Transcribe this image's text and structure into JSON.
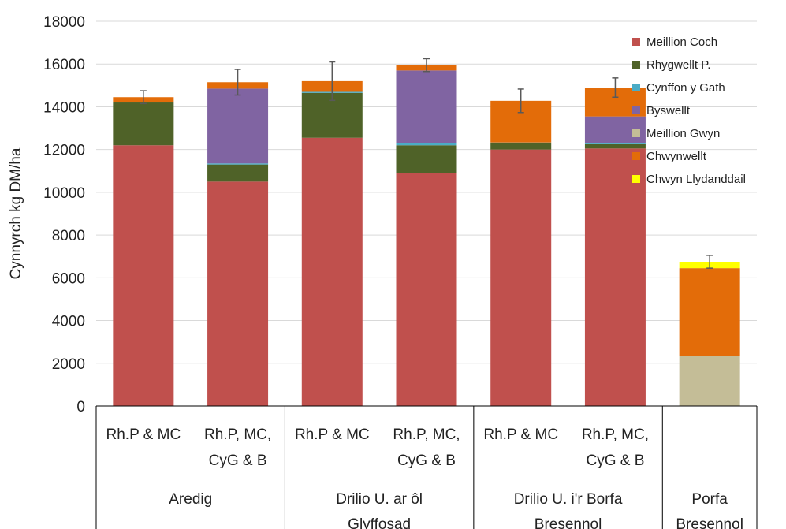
{
  "chart_data": {
    "type": "bar",
    "stacked": true,
    "title": "",
    "xlabel": "",
    "ylabel": "Cynnyrch kg DM/ha",
    "ylim": [
      0,
      18000
    ],
    "yticks": [
      0,
      2000,
      4000,
      6000,
      8000,
      10000,
      12000,
      14000,
      16000,
      18000
    ],
    "grid": true,
    "legend_position": "right",
    "categories": [
      [
        "Rh.P & MC"
      ],
      [
        "Rh.P, MC,",
        "CyG & B"
      ],
      [
        "Rh.P & MC"
      ],
      [
        "Rh.P, MC,",
        "CyG & B"
      ],
      [
        "Rh.P & MC"
      ],
      [
        "Rh.P, MC,",
        "CyG & B"
      ],
      []
    ],
    "groups": [
      {
        "label": [
          "Aredig"
        ],
        "bars": 2
      },
      {
        "label": [
          "Drilio U. ar ôl",
          "Glyffosad"
        ],
        "bars": 2
      },
      {
        "label": [
          "Drilio U. i'r Borfa",
          "Bresennol"
        ],
        "bars": 2
      },
      {
        "label": [
          "Porfa",
          "Bresennol"
        ],
        "bars": 1
      }
    ],
    "series": [
      {
        "name": "Meillion Coch",
        "color": "#C0504D",
        "values": [
          12200,
          10500,
          12550,
          10900,
          12000,
          12050,
          0
        ]
      },
      {
        "name": "Rhygwellt P.",
        "color": "#4F6228",
        "values": [
          2000,
          800,
          2100,
          1300,
          300,
          200,
          0
        ]
      },
      {
        "name": "Cynffon y Gath",
        "color": "#4BACC6",
        "values": [
          0,
          50,
          50,
          100,
          30,
          50,
          0
        ]
      },
      {
        "name": "Byswellt",
        "color": "#8064A2",
        "values": [
          0,
          3500,
          0,
          3400,
          0,
          1250,
          0
        ]
      },
      {
        "name": "Meillion Gwyn",
        "color": "#C4BD97",
        "values": [
          0,
          0,
          0,
          0,
          0,
          0,
          2350
        ]
      },
      {
        "name": "Chwynwellt",
        "color": "#E36C09",
        "values": [
          250,
          300,
          500,
          250,
          1950,
          1350,
          4100
        ]
      },
      {
        "name": "Chwyn Llydanddail",
        "color": "#FFFF00",
        "values": [
          0,
          0,
          0,
          0,
          0,
          0,
          300
        ]
      }
    ],
    "error_bars": [
      300,
      600,
      900,
      300,
      550,
      450,
      300
    ]
  }
}
